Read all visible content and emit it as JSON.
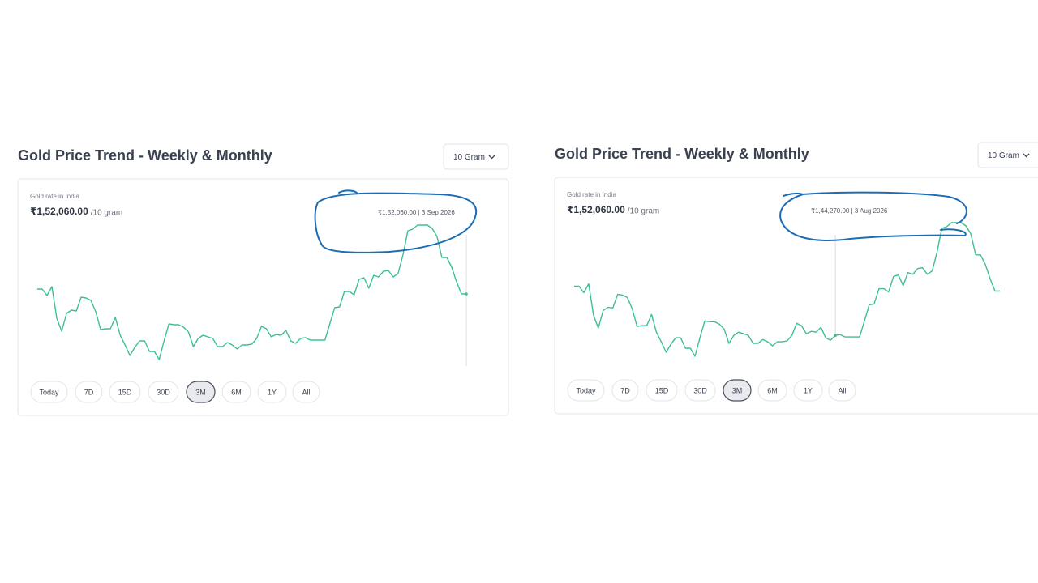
{
  "panels": [
    {
      "title": "Gold Price Trend - Weekly & Monthly",
      "unit_selector": "10 Gram",
      "label": "Gold rate in India",
      "price": "₹1,52,060.00",
      "price_unit": "/10 gram",
      "tooltip": "₹1,52,060.00 | 3 Sep 2026",
      "ranges": [
        "Today",
        "7D",
        "15D",
        "30D",
        "3M",
        "6M",
        "1Y",
        "All"
      ],
      "selected_range": "3M",
      "chart": {
        "type": "line",
        "color": "#3dbf94",
        "values": [
          152910,
          152910,
          151780,
          153330,
          147810,
          145550,
          148660,
          149230,
          149090,
          151490,
          151350,
          150930,
          148940,
          145830,
          145970,
          145970,
          147950,
          144840,
          143140,
          141300,
          142710,
          143850,
          143850,
          142010,
          142010,
          140590,
          143850,
          146820,
          146680,
          146680,
          146250,
          145410,
          142860,
          144270,
          144840,
          144560,
          144270,
          142860,
          142860,
          143560,
          143140,
          142430,
          143140,
          143140,
          143280,
          144270,
          146400,
          145970,
          144560,
          144980,
          144840,
          145690,
          143850,
          143420,
          144270,
          144410,
          143990,
          143990,
          143990,
          143990,
          146820,
          149650,
          149800,
          152480,
          152480,
          151920,
          154610,
          154890,
          153050,
          155320,
          155030,
          156020,
          156170,
          155030,
          155600,
          158860,
          163100,
          163390,
          164100,
          164100,
          164100,
          163530,
          162110,
          158430,
          158430,
          156730,
          154180,
          152060,
          152060
        ]
      }
    },
    {
      "title": "Gold Price Trend - Weekly & Monthly",
      "unit_selector": "10 Gram",
      "label": "Gold rate in India",
      "price": "₹1,52,060.00",
      "price_unit": "/10 gram",
      "tooltip": "₹1,44,270.00 | 3 Aug 2026",
      "ranges": [
        "Today",
        "7D",
        "15D",
        "30D",
        "3M",
        "6M",
        "1Y",
        "All"
      ],
      "selected_range": "3M",
      "chart": {
        "type": "line",
        "color": "#3dbf94",
        "values": [
          152910,
          152910,
          151780,
          153330,
          147810,
          145550,
          148660,
          149230,
          149090,
          151490,
          151350,
          150930,
          148940,
          145830,
          145970,
          145970,
          147950,
          144840,
          143140,
          141300,
          142710,
          143850,
          143850,
          142010,
          142010,
          140590,
          143850,
          146820,
          146680,
          146680,
          146250,
          145410,
          142860,
          144270,
          144840,
          144560,
          144270,
          142860,
          142860,
          143560,
          143140,
          142430,
          143140,
          143140,
          143280,
          144270,
          146400,
          145970,
          144560,
          144980,
          144840,
          145690,
          143850,
          143420,
          144270,
          144410,
          143990,
          143990,
          143990,
          143990,
          146820,
          149650,
          149800,
          152480,
          152480,
          151920,
          154610,
          154890,
          153050,
          155320,
          155030,
          156020,
          156170,
          155030,
          155600,
          158860,
          163100,
          163390,
          164100,
          164100,
          164100,
          163530,
          162110,
          158430,
          158430,
          156730,
          154180,
          152060,
          152060
        ]
      }
    }
  ]
}
